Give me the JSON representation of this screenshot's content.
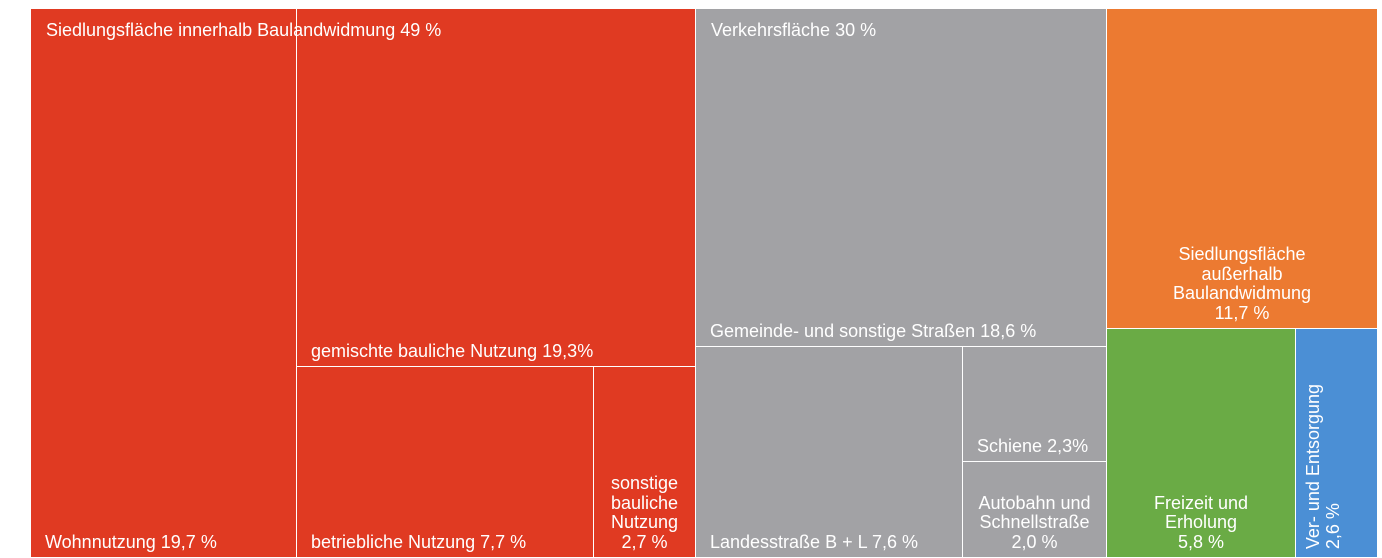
{
  "chart_data": {
    "type": "treemap",
    "groups": [
      {
        "name": "Siedlungsfläche innerhalb Baulandwidmung",
        "value": 49,
        "value_label": "49 %",
        "color": "#e03a22",
        "children": [
          {
            "name": "Wohnnutzung",
            "value": 19.7,
            "value_label": "19,7 %"
          },
          {
            "name": "gemischte bauliche Nutzung",
            "value": 19.3,
            "value_label": "19,3%"
          },
          {
            "name": "betriebliche Nutzung",
            "value": 7.7,
            "value_label": "7,7 %"
          },
          {
            "name": "sonstige bauliche Nutzung",
            "value": 2.7,
            "value_label": "2,7 %"
          }
        ]
      },
      {
        "name": "Verkehrsfläche",
        "value": 30,
        "value_label": "30 %",
        "color": "#a2a2a5",
        "children": [
          {
            "name": "Gemeinde- und sonstige Straßen",
            "value": 18.6,
            "value_label": "18,6 %"
          },
          {
            "name": "Landesstraße B + L",
            "value": 7.6,
            "value_label": "7,6 %"
          },
          {
            "name": "Schiene",
            "value": 2.3,
            "value_label": "2,3%"
          },
          {
            "name": "Autobahn und Schnellstraße",
            "value": 2.0,
            "value_label": "2,0 %"
          }
        ]
      },
      {
        "name": "Siedlungsfläche außerhalb Baulandwidmung",
        "value": 11.7,
        "value_label": "11,7 %",
        "color": "#ec7a31"
      },
      {
        "name": "Freizeit und Erholung",
        "value": 5.8,
        "value_label": "5,8 %",
        "color": "#6aab45"
      },
      {
        "name": "Ver- und Entsorgung",
        "value": 2.6,
        "value_label": "2,6 %",
        "color": "#4b8fd5"
      }
    ]
  }
}
